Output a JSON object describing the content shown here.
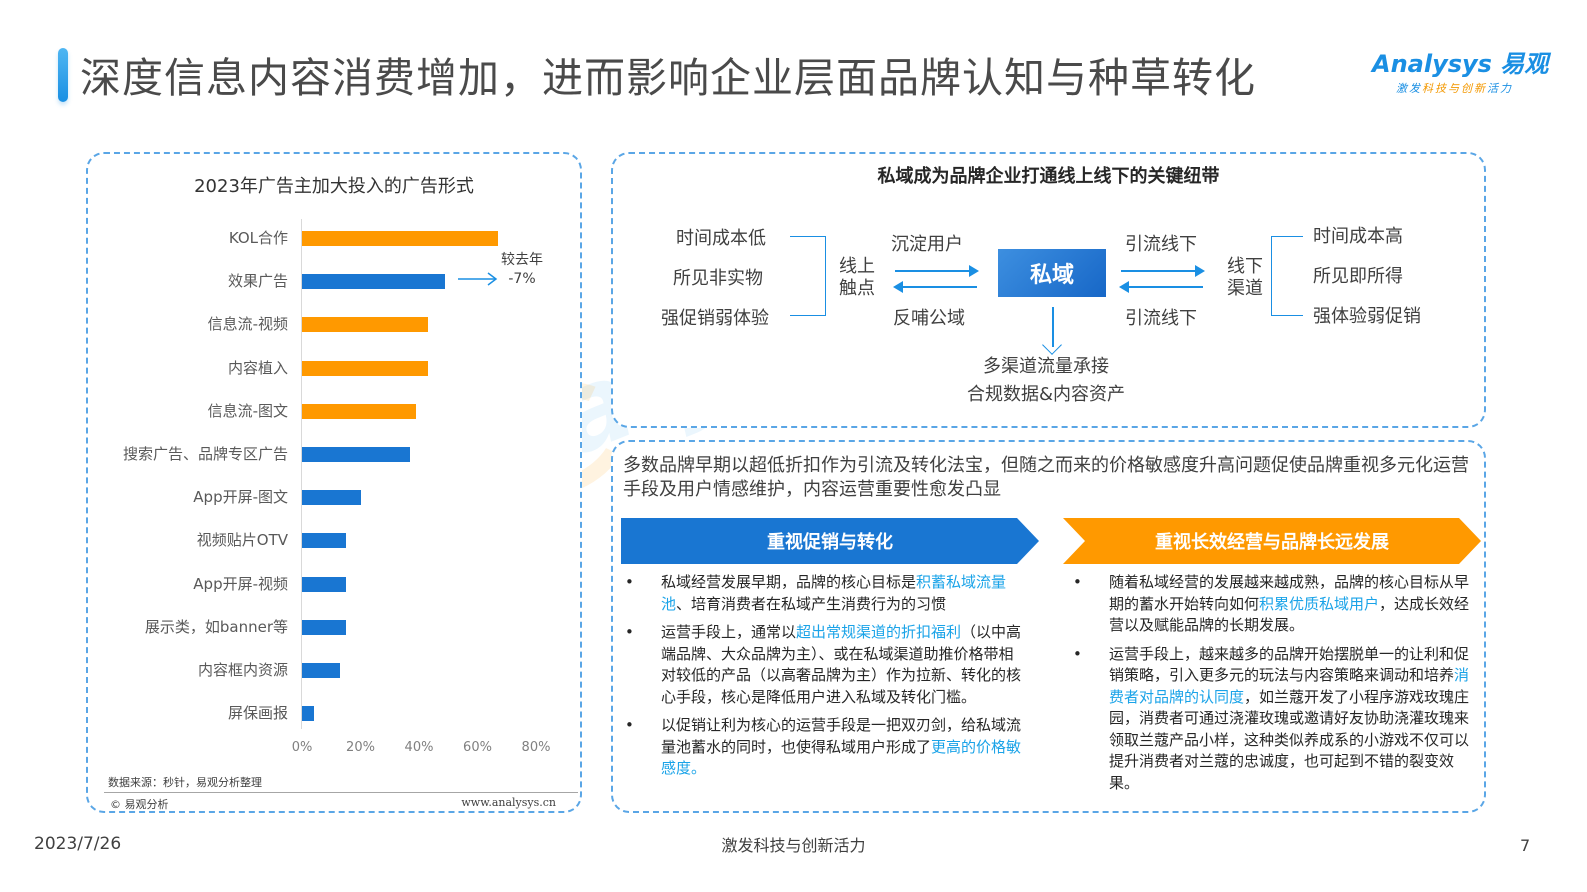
{
  "header": {
    "title": "深度信息内容消费增加，进而影响企业层面品牌认知与种草转化",
    "logo": {
      "brand": "Analysys 易观",
      "tagline_pre": "激发",
      "tagline_hl": "科技与创新",
      "tagline_post": "活力"
    }
  },
  "colors": {
    "accent_blue": "#1976d2",
    "accent_orange": "#ff9900",
    "highlight_text": "#1aa3e8",
    "border": "#5aa6e6"
  },
  "chart_data": {
    "type": "bar",
    "orientation": "horizontal",
    "title": "2023年广告主加大投入的广告形式",
    "categories": [
      "KOL合作",
      "效果广告",
      "信息流-视频",
      "内容植入",
      "信息流-图文",
      "搜索广告、品牌专区广告",
      "App开屏-图文",
      "视频贴片OTV",
      "App开屏-视频",
      "展示类，如banner等",
      "内容框内资源",
      "屏保画报"
    ],
    "values": [
      67,
      49,
      43,
      43,
      39,
      37,
      20,
      15,
      15,
      15,
      13,
      4
    ],
    "bar_colors": [
      "#ff9900",
      "#1976d2",
      "#ff9900",
      "#ff9900",
      "#ff9900",
      "#1976d2",
      "#1976d2",
      "#1976d2",
      "#1976d2",
      "#1976d2",
      "#1976d2",
      "#1976d2"
    ],
    "xlabel": "",
    "ylabel": "",
    "xlim": [
      0,
      80
    ],
    "xticks": [
      "0%",
      "20%",
      "40%",
      "60%",
      "80%"
    ],
    "grid": false,
    "annotations": [
      {
        "target": "效果广告",
        "text_line1": "较去年",
        "text_line2": "-7%"
      }
    ],
    "source": "数据来源：秒针，易观分析整理",
    "copyright": "© 易观分析",
    "website": "www.analysys.cn"
  },
  "diagram": {
    "title": "私域成为品牌企业打通线上线下的关键纽带",
    "online_traits": [
      "时间成本低",
      "所见非实物",
      "强促销弱体验"
    ],
    "online_node": "线上\n触点",
    "online_node_line1": "线上",
    "online_node_line2": "触点",
    "arrow_top_left": "沉淀用户",
    "arrow_bottom_left": "反哺公域",
    "center": "私域",
    "arrow_top_right": "引流线下",
    "arrow_bottom_right": "引流线下",
    "offline_node_line1": "线下",
    "offline_node_line2": "渠道",
    "offline_traits": [
      "时间成本高",
      "所见即所得",
      "强体验弱促销"
    ],
    "output_line1": "多渠道流量承接",
    "output_line2": "合规数据&内容资产"
  },
  "analysis": {
    "intro": "多数品牌早期以超低折扣作为引流及转化法宝，但随之而来的价格敏感度升高问题促使品牌重视多元化运营手段及用户情感维护，内容运营重要性愈发凸显",
    "left": {
      "heading": "重视促销与转化",
      "bullets": [
        {
          "pre": "私域经营发展早期，品牌的核心目标是",
          "hl": "积蓄私域流量池",
          "post": "、培育消费者在私域产生消费行为的习惯"
        },
        {
          "pre": "运营手段上，通常以",
          "hl": "超出常规渠道的折扣福利",
          "post": "（以中高端品牌、大众品牌为主）、或在私域渠道助推价格带相对较低的产品（以高奢品牌为主）作为拉新、转化的核心手段，核心是降低用户进入私域及转化门槛。"
        },
        {
          "pre": "以促销让利为核心的运营手段是一把双刃剑，给私域流量池蓄水的同时，也使得私域用户形成了",
          "hl": "更高的价格敏感度。",
          "post": ""
        }
      ]
    },
    "right": {
      "heading": "重视长效经营与品牌长远发展",
      "bullets": [
        {
          "pre": "随着私域经营的发展越来越成熟，品牌的核心目标从早期的蓄水开始转向如何",
          "hl": "积累优质私域用户",
          "post": "，达成长效经营以及赋能品牌的长期发展。"
        },
        {
          "pre": "运营手段上，越来越多的品牌开始摆脱单一的让利和促销策略，引入更多元的玩法与内容策略来调动和培养",
          "hl": "消费者对品牌的认同度",
          "post": "，如兰蔻开发了小程序游戏玫瑰庄园，消费者可通过浇灌玫瑰或邀请好友协助浇灌玫瑰来领取兰蔻产品小样，这种类似养成系的小游戏不仅可以提升消费者对兰蔻的忠诚度，也可起到不错的裂变效果。"
        }
      ]
    }
  },
  "footer": {
    "date": "2023/7/26",
    "center": "激发科技与创新活力",
    "page": "7"
  }
}
